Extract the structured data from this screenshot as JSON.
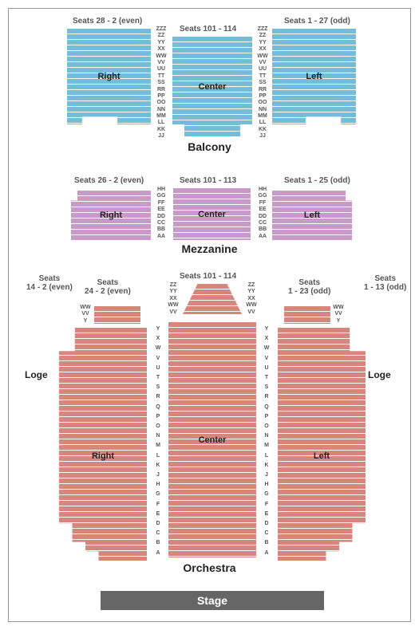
{
  "colors": {
    "balcony_fill": "#75bcd8",
    "balcony_stripe": "#ffffff",
    "mezz_fill": "#c99ac9",
    "mezz_stripe": "#ffffff",
    "orch_fill": "#d7867d",
    "orch_stripe": "#ffffff",
    "loge_fill": "#f3b75e",
    "loge_stripe": "#ffffff",
    "stage_fill": "#666666",
    "label_dark": "#222222",
    "label_gray": "#555555"
  },
  "stripe_height": 7,
  "balcony": {
    "title": "Balcony",
    "seat_label_right": "Seats 28 - 2 (even)",
    "seat_label_center": "Seats 101 - 114",
    "seat_label_left": "Seats 1 - 27 (odd)",
    "rows_outer": [
      "ZZZ",
      "ZZ",
      "YY",
      "XX",
      "WW",
      "VV",
      "UU",
      "TT",
      "SS",
      "RR",
      "PP",
      "OO",
      "NN",
      "MM",
      "LL",
      "KK",
      "JJ"
    ],
    "sections": {
      "right": {
        "label": "Right"
      },
      "center": {
        "label": "Center"
      },
      "left": {
        "label": "Left"
      }
    }
  },
  "mezzanine": {
    "title": "Mezzanine",
    "seat_label_right": "Seats 26 - 2 (even)",
    "seat_label_center": "Seats 101 - 113",
    "seat_label_left": "Seats 1 - 25 (odd)",
    "rows": [
      "HH",
      "GG",
      "FF",
      "EE",
      "DD",
      "CC",
      "BB",
      "AA"
    ],
    "sections": {
      "right": {
        "label": "Right"
      },
      "center": {
        "label": "Center"
      },
      "left": {
        "label": "Left"
      }
    }
  },
  "orchestra": {
    "title": "Orchestra",
    "seat_label_center": "Seats 101 - 114",
    "seat_label_right_inner": "Seats\n24 - 2 (even)",
    "seat_label_left_inner": "Seats\n1 - 23 (odd)",
    "seat_label_right_outer": "Seats\n14 - 2 (even)",
    "seat_label_left_outer": "Seats\n1 - 13 (odd)",
    "rows_top": [
      "ZZ",
      "YY",
      "XX",
      "WW",
      "VV"
    ],
    "rows_upper": [
      "WW",
      "VV",
      "Y"
    ],
    "rows_main": [
      "Y",
      "X",
      "W",
      "V",
      "U",
      "T",
      "S",
      "R",
      "Q",
      "P",
      "O",
      "N",
      "M",
      "L",
      "K",
      "J",
      "H",
      "G",
      "F",
      "E",
      "D",
      "C",
      "B",
      "A"
    ],
    "sections": {
      "right": {
        "label": "Right"
      },
      "center": {
        "label": "Center"
      },
      "left": {
        "label": "Left"
      }
    }
  },
  "loge": {
    "title": "Loge"
  },
  "stage": {
    "label": "Stage"
  }
}
